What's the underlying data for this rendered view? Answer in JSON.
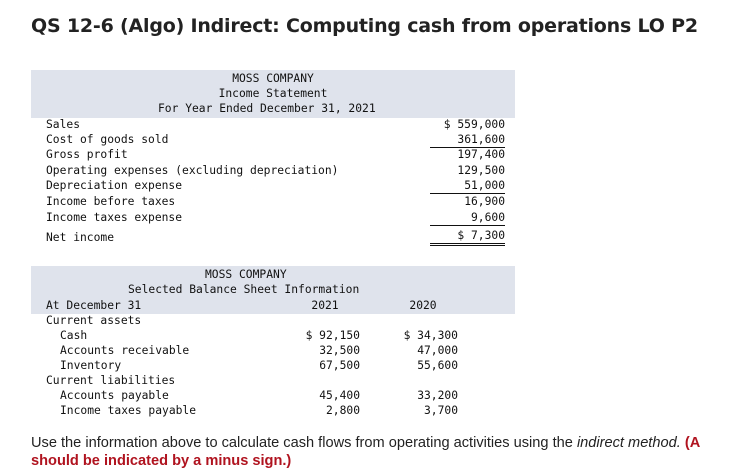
{
  "title": "QS 12-6 (Algo) Indirect: Computing cash from operations LO P2",
  "income": {
    "company": "MOSS COMPANY",
    "statement": "Income Statement",
    "period": "For Year Ended December 31, 2021",
    "rows": [
      {
        "label": "Sales",
        "value": "$ 559,000"
      },
      {
        "label": "Cost of goods sold",
        "value": "361,600"
      },
      {
        "label": "Gross profit",
        "value": "197,400"
      },
      {
        "label": "Operating expenses (excluding depreciation)",
        "value": "129,500"
      },
      {
        "label": "Depreciation expense",
        "value": "51,000"
      },
      {
        "label": "Income before taxes",
        "value": "16,900"
      },
      {
        "label": "Income taxes expense",
        "value": "9,600"
      },
      {
        "label": "Net income",
        "value": "$ 7,300"
      }
    ]
  },
  "balance": {
    "company": "MOSS COMPANY",
    "statement": "Selected Balance Sheet Information",
    "at_label": "At December 31",
    "col_2021": "2021",
    "col_2020": "2020",
    "current_assets": "Current assets",
    "current_liabilities": "Current liabilities",
    "rows": [
      {
        "label": "Cash",
        "v2021": "$ 92,150",
        "v2020": "$ 34,300"
      },
      {
        "label": "Accounts receivable",
        "v2021": "32,500",
        "v2020": "47,000"
      },
      {
        "label": "Inventory",
        "v2021": "67,500",
        "v2020": "55,600"
      },
      {
        "label": "Accounts payable",
        "v2021": "45,400",
        "v2020": "33,200"
      },
      {
        "label": "Income taxes payable",
        "v2021": "2,800",
        "v2020": "3,700"
      }
    ]
  },
  "instructions": {
    "text_a": "Use the information above to calculate cash flows from operating activities using the ",
    "text_em": "indirect method.",
    "text_b": " (A",
    "text_red2": "should be indicated by a minus sign.)"
  }
}
